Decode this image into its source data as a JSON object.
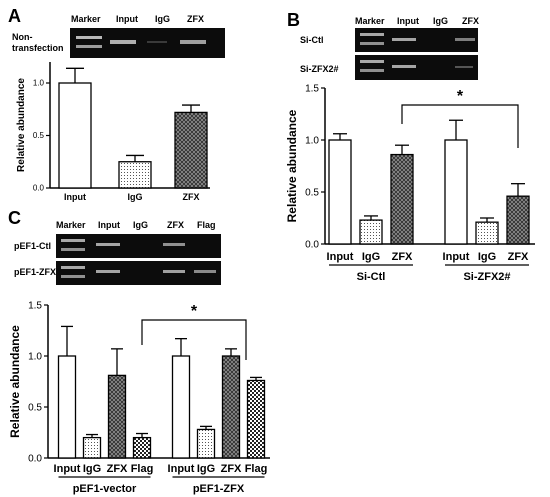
{
  "panels": {
    "A": {
      "letter": "A",
      "gel": {
        "lanes": [
          "Marker",
          "Input",
          "IgG",
          "ZFX"
        ],
        "rows": [
          "Non-\ntransfection"
        ]
      }
    },
    "B": {
      "letter": "B",
      "gel": {
        "lanes": [
          "Marker",
          "Input",
          "IgG",
          "ZFX"
        ],
        "rows": [
          "Si-Ctl",
          "Si-ZFX2#"
        ]
      }
    },
    "C": {
      "letter": "C",
      "gel": {
        "lanes": [
          "Marker",
          "Input",
          "IgG",
          "ZFX",
          "Flag"
        ],
        "rows": [
          "pEF1-Ctl",
          "pEF1-ZFX"
        ]
      }
    }
  },
  "chart_data": [
    {
      "panel": "A",
      "type": "bar",
      "ylabel": "Relative abundance",
      "ylim": [
        0,
        1.2
      ],
      "yticks": [
        "0.0",
        "0.5",
        "1.0"
      ],
      "categories": [
        "Input",
        "IgG",
        "ZFX"
      ],
      "values": [
        1.0,
        0.25,
        0.72
      ],
      "errors": [
        0.14,
        0.06,
        0.07
      ],
      "fills": [
        "white",
        "dots",
        "cross"
      ]
    },
    {
      "panel": "B",
      "type": "bar",
      "ylabel": "Relative abundance",
      "ylim": [
        0,
        1.5
      ],
      "yticks": [
        "0.0",
        "0.5",
        "1.0",
        "1.5"
      ],
      "groups": [
        {
          "name": "Si-Ctl",
          "categories": [
            "Input",
            "IgG",
            "ZFX"
          ],
          "values": [
            1.0,
            0.23,
            0.86
          ],
          "errors": [
            0.06,
            0.04,
            0.09
          ]
        },
        {
          "name": "Si-ZFX2#",
          "categories": [
            "Input",
            "IgG",
            "ZFX"
          ],
          "values": [
            1.0,
            0.21,
            0.46
          ],
          "errors": [
            0.19,
            0.04,
            0.12
          ]
        }
      ],
      "fills": [
        "white",
        "dots",
        "cross"
      ],
      "significance": "*"
    },
    {
      "panel": "C",
      "type": "bar",
      "ylabel": "Relative abundance",
      "ylim": [
        0,
        1.5
      ],
      "yticks": [
        "0.0",
        "0.5",
        "1.0",
        "1.5"
      ],
      "groups": [
        {
          "name": "pEF1-vector",
          "categories": [
            "Input",
            "IgG",
            "ZFX",
            "Flag"
          ],
          "values": [
            1.0,
            0.2,
            0.81,
            0.2
          ],
          "errors": [
            0.29,
            0.03,
            0.26,
            0.04
          ]
        },
        {
          "name": "pEF1-ZFX",
          "categories": [
            "Input",
            "IgG",
            "ZFX",
            "Flag"
          ],
          "values": [
            1.0,
            0.28,
            1.0,
            0.76
          ],
          "errors": [
            0.17,
            0.03,
            0.07,
            0.03
          ]
        }
      ],
      "fills": [
        "white",
        "dots",
        "cross",
        "checker"
      ],
      "significance": "*"
    }
  ]
}
